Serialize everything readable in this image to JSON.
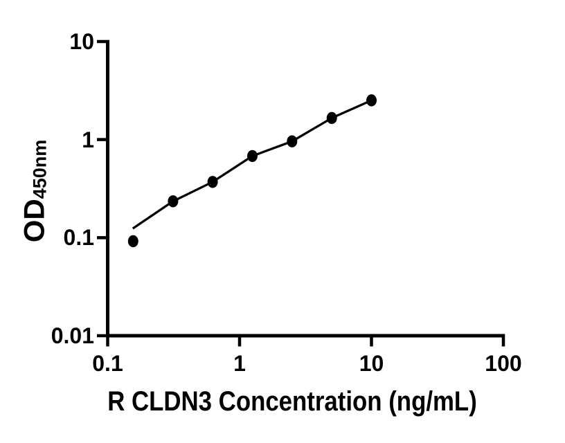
{
  "figure": {
    "background": "#ffffff",
    "ink_color": "#000000"
  },
  "chart_data": {
    "type": "scatter",
    "title": "",
    "xlabel": "R CLDN3 Concentration (ng/mL)",
    "ylabel": "OD",
    "ylabel_subscript": "450nm",
    "x_scale": "log",
    "y_scale": "log",
    "xlim": [
      0.1,
      100
    ],
    "ylim": [
      0.01,
      10
    ],
    "grid": false,
    "legend": false,
    "x_ticks": [
      {
        "value": 0.1,
        "label": "0.1"
      },
      {
        "value": 1,
        "label": "1"
      },
      {
        "value": 10,
        "label": "10"
      },
      {
        "value": 100,
        "label": "100"
      }
    ],
    "y_ticks": [
      {
        "value": 0.01,
        "label": "0.01"
      },
      {
        "value": 0.1,
        "label": "0.1"
      },
      {
        "value": 1,
        "label": "1"
      },
      {
        "value": 10,
        "label": "10"
      }
    ],
    "series": [
      {
        "name": "standard-points",
        "marker": "filled-circle",
        "color": "#000000",
        "points": [
          {
            "x": 0.156,
            "y": 0.092
          },
          {
            "x": 0.313,
            "y": 0.235
          },
          {
            "x": 0.625,
            "y": 0.37
          },
          {
            "x": 1.25,
            "y": 0.68
          },
          {
            "x": 2.5,
            "y": 0.96
          },
          {
            "x": 5,
            "y": 1.66
          },
          {
            "x": 10,
            "y": 2.51
          }
        ]
      }
    ],
    "fit_line": {
      "name": "fitted-curve",
      "color": "#000000",
      "points": [
        {
          "x": 0.155,
          "y": 0.124
        },
        {
          "x": 0.313,
          "y": 0.235
        },
        {
          "x": 0.625,
          "y": 0.37
        },
        {
          "x": 1.25,
          "y": 0.68
        },
        {
          "x": 2.5,
          "y": 0.96
        },
        {
          "x": 5,
          "y": 1.66
        },
        {
          "x": 10,
          "y": 2.51
        }
      ]
    }
  }
}
